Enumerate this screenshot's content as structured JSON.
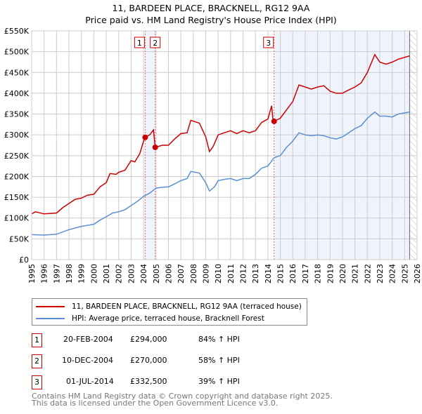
{
  "colors": {
    "property": "#cc0000",
    "hpi": "#5b8fd0",
    "shade": "#eef3fc",
    "grid": "#cccccc"
  },
  "chart_data": {
    "type": "line",
    "title": "11, BARDEEN PLACE, BRACKNELL, RG12 9AA",
    "subtitle": "Price paid vs. HM Land Registry's House Price Index (HPI)",
    "xlim": [
      1995,
      2026
    ],
    "ylim": [
      0,
      550000
    ],
    "xticks": [
      "1995",
      "1996",
      "1997",
      "1998",
      "1999",
      "2000",
      "2001",
      "2002",
      "2003",
      "2004",
      "2005",
      "2006",
      "2007",
      "2008",
      "2009",
      "2010",
      "2011",
      "2012",
      "2013",
      "2014",
      "2015",
      "2016",
      "2017",
      "2018",
      "2019",
      "2020",
      "2021",
      "2022",
      "2023",
      "2024",
      "2025",
      "2026"
    ],
    "yticks": [
      {
        "v": 0,
        "label": "£0"
      },
      {
        "v": 50000,
        "label": "£50K"
      },
      {
        "v": 100000,
        "label": "£100K"
      },
      {
        "v": 150000,
        "label": "£150K"
      },
      {
        "v": 200000,
        "label": "£200K"
      },
      {
        "v": 250000,
        "label": "£250K"
      },
      {
        "v": 300000,
        "label": "£300K"
      },
      {
        "v": 350000,
        "label": "£350K"
      },
      {
        "v": 400000,
        "label": "£400K"
      },
      {
        "v": 450000,
        "label": "£450K"
      },
      {
        "v": 500000,
        "label": "£500K"
      },
      {
        "v": 550000,
        "label": "£550K"
      }
    ],
    "grid": true,
    "shaded_ranges": [
      [
        2004.13,
        2004.94
      ],
      [
        2014.5,
        2025.4
      ]
    ],
    "forecast_hatch_from": 2025.4,
    "series": [
      {
        "name": "11, BARDEEN PLACE, BRACKNELL, RG12 9AA (terraced house)",
        "x": [
          1995,
          1995.3,
          1996,
          1997,
          1997.5,
          1998,
          1998.5,
          1999,
          1999.5,
          2000,
          2000.5,
          2001,
          2001.3,
          2001.8,
          2002,
          2002.5,
          2003,
          2003.3,
          2003.7,
          2004,
          2004.13,
          2004.5,
          2004.8,
          2004.94,
          2005.5,
          2006,
          2006.5,
          2007,
          2007.5,
          2007.8,
          2008.5,
          2009,
          2009.3,
          2009.6,
          2010,
          2010.5,
          2011,
          2011.5,
          2012,
          2012.5,
          2013,
          2013.5,
          2014,
          2014.3,
          2014.4,
          2014.5,
          2015,
          2015.5,
          2016,
          2016.5,
          2017,
          2017.5,
          2018,
          2018.5,
          2019,
          2019.5,
          2020,
          2020.5,
          2021,
          2021.5,
          2022,
          2022.6,
          2023,
          2023.5,
          2024,
          2024.5,
          2025.4
        ],
        "values": [
          110000,
          115000,
          110000,
          112000,
          125000,
          135000,
          145000,
          148000,
          155000,
          157000,
          175000,
          185000,
          207000,
          205000,
          210000,
          215000,
          238000,
          235000,
          255000,
          285000,
          294000,
          300000,
          312000,
          270000,
          275000,
          275000,
          290000,
          303000,
          305000,
          335000,
          328000,
          295000,
          260000,
          272000,
          300000,
          305000,
          310000,
          303000,
          310000,
          305000,
          310000,
          330000,
          338000,
          370000,
          340000,
          332500,
          340000,
          360000,
          380000,
          420000,
          415000,
          410000,
          415000,
          418000,
          405000,
          400000,
          400000,
          408000,
          415000,
          425000,
          450000,
          493000,
          475000,
          470000,
          475000,
          482000,
          490000
        ]
      },
      {
        "name": "HPI: Average price, terraced house, Bracknell Forest",
        "x": [
          1995,
          1996,
          1997,
          1998,
          1999,
          2000,
          2000.5,
          2001,
          2001.5,
          2002,
          2002.5,
          2003,
          2003.5,
          2004,
          2004.5,
          2005,
          2005.5,
          2006,
          2006.5,
          2007,
          2007.5,
          2007.8,
          2008.5,
          2009,
          2009.3,
          2009.7,
          2010,
          2010.5,
          2011,
          2011.5,
          2012,
          2012.5,
          2013,
          2013.5,
          2014,
          2014.5,
          2015,
          2015.5,
          2016,
          2016.5,
          2017,
          2017.5,
          2018,
          2018.5,
          2019,
          2019.5,
          2020,
          2020.5,
          2021,
          2021.5,
          2022,
          2022.6,
          2023,
          2023.5,
          2024,
          2024.5,
          2025.4
        ],
        "values": [
          60000,
          59000,
          61000,
          72000,
          80000,
          85000,
          95000,
          103000,
          112000,
          115000,
          120000,
          130000,
          140000,
          152000,
          160000,
          172000,
          174000,
          175000,
          182000,
          190000,
          195000,
          212000,
          208000,
          185000,
          165000,
          175000,
          190000,
          193000,
          195000,
          190000,
          195000,
          195000,
          205000,
          220000,
          225000,
          245000,
          250000,
          270000,
          285000,
          305000,
          300000,
          298000,
          300000,
          298000,
          293000,
          290000,
          295000,
          305000,
          315000,
          322000,
          340000,
          355000,
          345000,
          345000,
          343000,
          350000,
          355000
        ]
      }
    ],
    "sales": [
      {
        "id": "1",
        "x": 2004.13,
        "value": 294000,
        "date": "20-FEB-2004",
        "price": "£294,000",
        "hpi": "84% ↑ HPI"
      },
      {
        "id": "2",
        "x": 2004.94,
        "value": 270000,
        "date": "10-DEC-2004",
        "price": "£270,000",
        "hpi": "58% ↑ HPI"
      },
      {
        "id": "3",
        "x": 2014.5,
        "value": 332500,
        "date": "01-JUL-2014",
        "price": "£332,500",
        "hpi": "39% ↑ HPI"
      }
    ],
    "legend": {
      "placement": "bottom",
      "items": [
        "11, BARDEEN PLACE, BRACKNELL, RG12 9AA (terraced house)",
        "HPI: Average price, terraced house, Bracknell Forest"
      ]
    }
  },
  "footer": {
    "line1": "Contains HM Land Registry data © Crown copyright and database right 2025.",
    "line2": "This data is licensed under the Open Government Licence v3.0."
  }
}
